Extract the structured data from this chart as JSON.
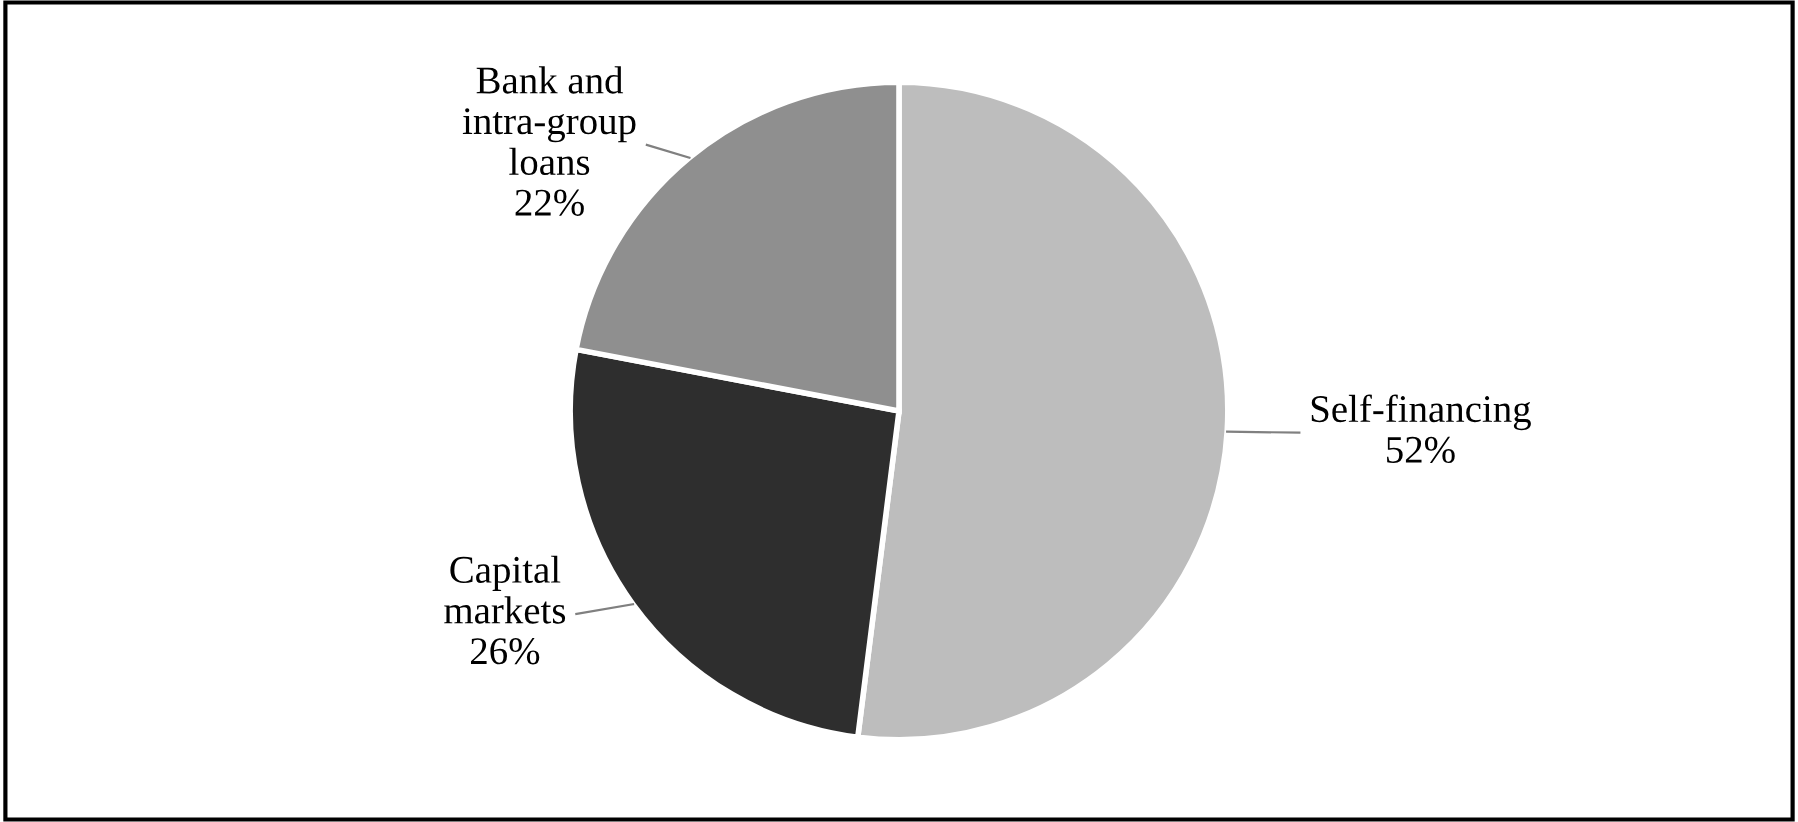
{
  "chart_data": {
    "type": "pie",
    "categories": [
      "Self-financing",
      "Capital\nmarkets",
      "Bank and\nintra-group\nloans"
    ],
    "values": [
      52,
      26,
      22
    ],
    "colors": [
      "#bdbdbd",
      "#2e2e2e",
      "#8f8f8f"
    ],
    "value_labels": [
      "52%",
      "26%",
      "22%"
    ],
    "legend": false
  }
}
